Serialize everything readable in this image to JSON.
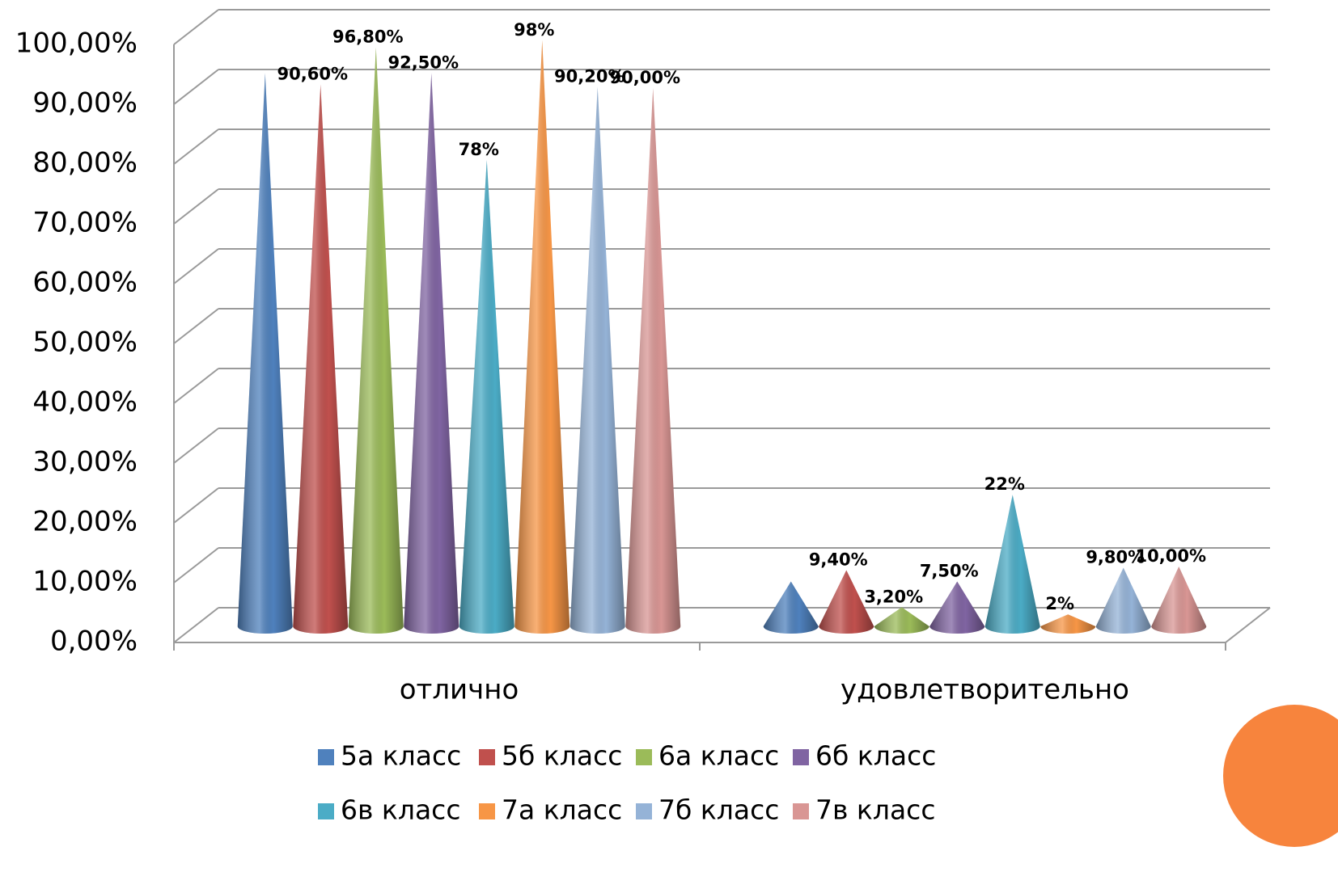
{
  "chart_data": {
    "type": "cone-bar",
    "categories": [
      "отлично",
      "удовлетворительно"
    ],
    "series": [
      {
        "name": "5а класс",
        "color": "#4f81bd",
        "values": [
          92.5,
          7.5
        ],
        "value_labels": [
          null,
          null
        ]
      },
      {
        "name": "5б класс",
        "color": "#c0504d",
        "values": [
          90.6,
          9.4
        ],
        "value_labels": [
          "90,60%",
          "9,40%"
        ]
      },
      {
        "name": "6а класс",
        "color": "#9bbb59",
        "values": [
          96.8,
          3.2
        ],
        "value_labels": [
          "96,80%",
          "3,20%"
        ]
      },
      {
        "name": "6б класс",
        "color": "#8064a2",
        "values": [
          92.5,
          7.5
        ],
        "value_labels": [
          "92,50%",
          "7,50%"
        ]
      },
      {
        "name": "6в класс",
        "color": "#4bacc6",
        "values": [
          78,
          22
        ],
        "value_labels": [
          "78%",
          "22%"
        ]
      },
      {
        "name": "7а класс",
        "color": "#f79646",
        "values": [
          98,
          2
        ],
        "value_labels": [
          "98%",
          "2%"
        ]
      },
      {
        "name": "7б класс",
        "color": "#95b3d7",
        "values": [
          90.2,
          9.8
        ],
        "value_labels": [
          "90,20%",
          "9,80%"
        ]
      },
      {
        "name": "7в класс",
        "color": "#d99694",
        "values": [
          90,
          10
        ],
        "value_labels": [
          "90,00%",
          "10,00%"
        ]
      }
    ],
    "ylim": [
      0,
      100
    ],
    "yticks": [
      {
        "value": 0,
        "label": "0,00%"
      },
      {
        "value": 10,
        "label": "10,00%"
      },
      {
        "value": 20,
        "label": "20,00%"
      },
      {
        "value": 30,
        "label": "30,00%"
      },
      {
        "value": 40,
        "label": "40,00%"
      },
      {
        "value": 50,
        "label": "50,00%"
      },
      {
        "value": 60,
        "label": "60,00%"
      },
      {
        "value": 70,
        "label": "70,00%"
      },
      {
        "value": 80,
        "label": "80,00%"
      },
      {
        "value": 90,
        "label": "90,00%"
      },
      {
        "value": 100,
        "label": "100,00%"
      }
    ],
    "grid": true,
    "legend": "bottom"
  }
}
